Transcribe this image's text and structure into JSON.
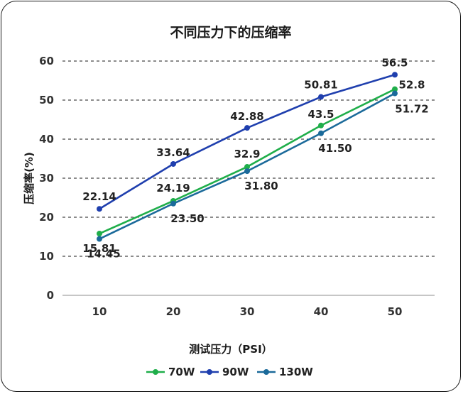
{
  "chart_data": {
    "type": "line",
    "title": "不同压力下的压缩率",
    "xlabel": "测试压力（PSI）",
    "ylabel": "压缩率(%)",
    "x": [
      10,
      20,
      30,
      40,
      50
    ],
    "categories": [
      "10",
      "20",
      "30",
      "40",
      "50"
    ],
    "ylim": [
      0,
      60
    ],
    "yticks": [
      "0",
      "10",
      "20",
      "30",
      "40",
      "50",
      "60"
    ],
    "grid": true,
    "legend_position": "bottom",
    "series": [
      {
        "name": "70W",
        "color": "#1fae4a",
        "values": [
          15.81,
          24.19,
          32.9,
          43.5,
          52.8
        ],
        "labels": [
          "15.81",
          "24.19",
          "32.9",
          "43.5",
          "52.8"
        ]
      },
      {
        "name": "90W",
        "color": "#1f3fae",
        "values": [
          22.14,
          33.64,
          42.88,
          50.81,
          56.5
        ],
        "labels": [
          "22.14",
          "33.64",
          "42.88",
          "50.81",
          "56.5"
        ]
      },
      {
        "name": "130W",
        "color": "#1b6a9a",
        "values": [
          14.45,
          23.5,
          31.8,
          41.5,
          51.72
        ],
        "labels": [
          "14.45",
          "23.50",
          "31.80",
          "41.50",
          "51.72"
        ]
      }
    ]
  }
}
